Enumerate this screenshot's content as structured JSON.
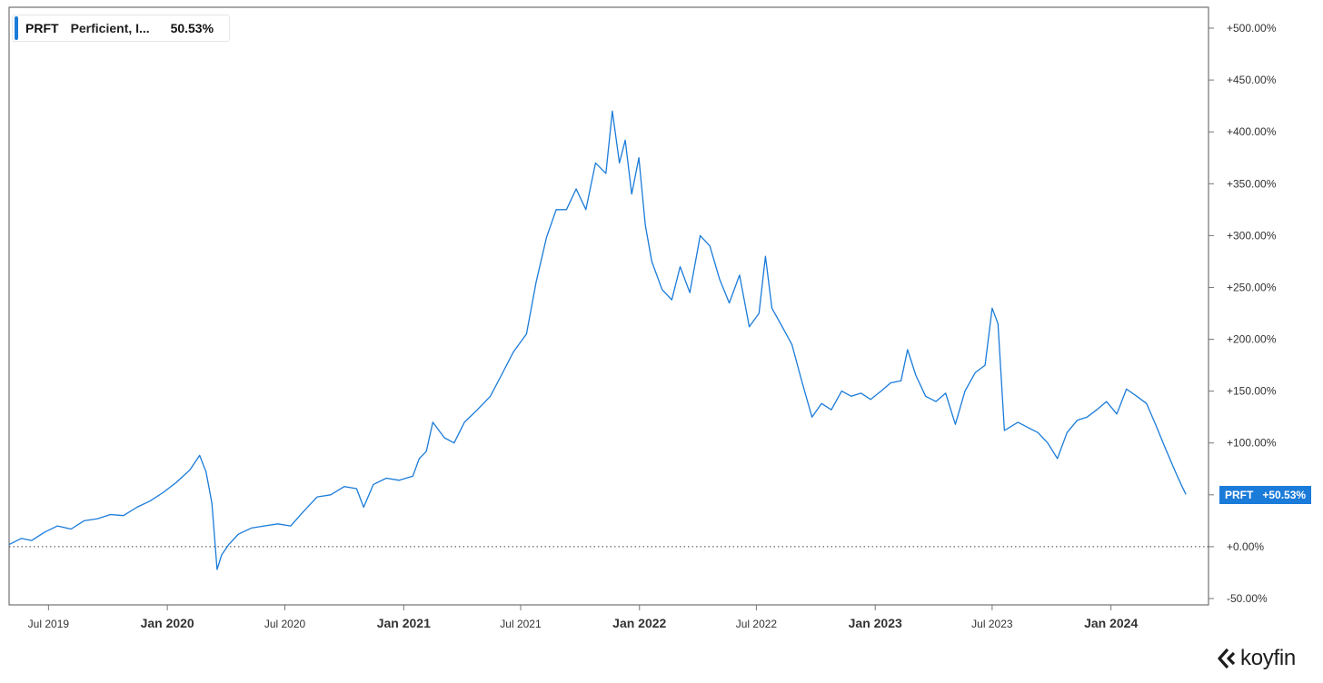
{
  "brand": {
    "name": "koyfin",
    "logo_icon": "koyfin-chevron-logo-icon"
  },
  "legend": {
    "ticker": "PRFT",
    "name": "Perficient, I...",
    "value": "50.53%",
    "color": "#1a7bd9"
  },
  "last_value_tag": {
    "ticker": "PRFT",
    "value": "+50.53%",
    "color": "#1a7bd9"
  },
  "chart_data": {
    "type": "line",
    "title": "",
    "xlabel": "",
    "ylabel": "",
    "ylim": [
      -50,
      500
    ],
    "y_scale": "linear",
    "grid": false,
    "legend_position": "top-left",
    "baseline": 0,
    "y_ticks": [
      {
        "value": 500,
        "label": "+500.00%"
      },
      {
        "value": 450,
        "label": "+450.00%"
      },
      {
        "value": 400,
        "label": "+400.00%"
      },
      {
        "value": 350,
        "label": "+350.00%"
      },
      {
        "value": 300,
        "label": "+300.00%"
      },
      {
        "value": 250,
        "label": "+250.00%"
      },
      {
        "value": 200,
        "label": "+200.00%"
      },
      {
        "value": 150,
        "label": "+150.00%"
      },
      {
        "value": 100,
        "label": "+100.00%"
      },
      {
        "value": 50,
        "label": ""
      },
      {
        "value": 0,
        "label": "+0.00%"
      },
      {
        "value": -50,
        "label": "-50.00%"
      }
    ],
    "x_ticks": [
      {
        "date": "2019-07-01",
        "label": "Jul 2019",
        "major": false
      },
      {
        "date": "2020-01-01",
        "label": "Jan 2020",
        "major": true
      },
      {
        "date": "2020-07-01",
        "label": "Jul 2020",
        "major": false
      },
      {
        "date": "2021-01-01",
        "label": "Jan 2021",
        "major": true
      },
      {
        "date": "2021-07-01",
        "label": "Jul 2021",
        "major": false
      },
      {
        "date": "2022-01-01",
        "label": "Jan 2022",
        "major": true
      },
      {
        "date": "2022-07-01",
        "label": "Jul 2022",
        "major": false
      },
      {
        "date": "2023-01-01",
        "label": "Jan 2023",
        "major": true
      },
      {
        "date": "2023-07-01",
        "label": "Jul 2023",
        "major": false
      },
      {
        "date": "2024-01-01",
        "label": "Jan 2024",
        "major": true
      }
    ],
    "x_range": [
      "2019-05-01",
      "2024-05-31"
    ],
    "series": [
      {
        "name": "PRFT",
        "color": "#1a7bd9",
        "points": [
          [
            "2019-05-01",
            2
          ],
          [
            "2019-05-20",
            8
          ],
          [
            "2019-06-05",
            6
          ],
          [
            "2019-06-25",
            14
          ],
          [
            "2019-07-15",
            20
          ],
          [
            "2019-08-05",
            17
          ],
          [
            "2019-08-25",
            25
          ],
          [
            "2019-09-15",
            27
          ],
          [
            "2019-10-05",
            31
          ],
          [
            "2019-10-25",
            30
          ],
          [
            "2019-11-15",
            38
          ],
          [
            "2019-12-05",
            44
          ],
          [
            "2019-12-25",
            52
          ],
          [
            "2020-01-15",
            62
          ],
          [
            "2020-02-05",
            74
          ],
          [
            "2020-02-20",
            88
          ],
          [
            "2020-03-01",
            72
          ],
          [
            "2020-03-10",
            42
          ],
          [
            "2020-03-18",
            -22
          ],
          [
            "2020-03-25",
            -8
          ],
          [
            "2020-04-05",
            2
          ],
          [
            "2020-04-20",
            12
          ],
          [
            "2020-05-10",
            18
          ],
          [
            "2020-05-30",
            20
          ],
          [
            "2020-06-20",
            22
          ],
          [
            "2020-07-10",
            20
          ],
          [
            "2020-07-30",
            34
          ],
          [
            "2020-08-20",
            48
          ],
          [
            "2020-09-10",
            50
          ],
          [
            "2020-10-01",
            58
          ],
          [
            "2020-10-20",
            56
          ],
          [
            "2020-10-31",
            38
          ],
          [
            "2020-11-15",
            60
          ],
          [
            "2020-12-05",
            66
          ],
          [
            "2020-12-25",
            64
          ],
          [
            "2021-01-15",
            68
          ],
          [
            "2021-01-25",
            85
          ],
          [
            "2021-02-05",
            92
          ],
          [
            "2021-02-15",
            120
          ],
          [
            "2021-03-05",
            105
          ],
          [
            "2021-03-20",
            100
          ],
          [
            "2021-04-05",
            120
          ],
          [
            "2021-04-25",
            132
          ],
          [
            "2021-05-15",
            145
          ],
          [
            "2021-06-01",
            165
          ],
          [
            "2021-06-20",
            188
          ],
          [
            "2021-07-10",
            205
          ],
          [
            "2021-07-25",
            255
          ],
          [
            "2021-08-10",
            298
          ],
          [
            "2021-08-25",
            325
          ],
          [
            "2021-09-10",
            325
          ],
          [
            "2021-09-25",
            345
          ],
          [
            "2021-10-10",
            325
          ],
          [
            "2021-10-25",
            370
          ],
          [
            "2021-11-10",
            360
          ],
          [
            "2021-11-20",
            420
          ],
          [
            "2021-12-01",
            370
          ],
          [
            "2021-12-10",
            392
          ],
          [
            "2021-12-20",
            340
          ],
          [
            "2021-12-31",
            375
          ],
          [
            "2022-01-10",
            310
          ],
          [
            "2022-01-20",
            275
          ],
          [
            "2022-02-05",
            248
          ],
          [
            "2022-02-20",
            238
          ],
          [
            "2022-03-05",
            270
          ],
          [
            "2022-03-20",
            245
          ],
          [
            "2022-04-05",
            300
          ],
          [
            "2022-04-20",
            290
          ],
          [
            "2022-05-05",
            258
          ],
          [
            "2022-05-20",
            235
          ],
          [
            "2022-06-05",
            262
          ],
          [
            "2022-06-20",
            212
          ],
          [
            "2022-07-05",
            225
          ],
          [
            "2022-07-15",
            280
          ],
          [
            "2022-07-25",
            230
          ],
          [
            "2022-08-10",
            212
          ],
          [
            "2022-08-25",
            195
          ],
          [
            "2022-09-10",
            158
          ],
          [
            "2022-09-25",
            125
          ],
          [
            "2022-10-10",
            138
          ],
          [
            "2022-10-25",
            132
          ],
          [
            "2022-11-10",
            150
          ],
          [
            "2022-11-25",
            145
          ],
          [
            "2022-12-10",
            148
          ],
          [
            "2022-12-25",
            142
          ],
          [
            "2023-01-10",
            150
          ],
          [
            "2023-01-25",
            158
          ],
          [
            "2023-02-10",
            160
          ],
          [
            "2023-02-20",
            190
          ],
          [
            "2023-03-05",
            165
          ],
          [
            "2023-03-20",
            145
          ],
          [
            "2023-04-05",
            140
          ],
          [
            "2023-04-20",
            148
          ],
          [
            "2023-05-05",
            118
          ],
          [
            "2023-05-20",
            150
          ],
          [
            "2023-06-05",
            168
          ],
          [
            "2023-06-20",
            175
          ],
          [
            "2023-07-01",
            230
          ],
          [
            "2023-07-10",
            215
          ],
          [
            "2023-07-20",
            112
          ],
          [
            "2023-08-10",
            120
          ],
          [
            "2023-08-25",
            115
          ],
          [
            "2023-09-10",
            110
          ],
          [
            "2023-09-25",
            100
          ],
          [
            "2023-10-10",
            85
          ],
          [
            "2023-10-25",
            110
          ],
          [
            "2023-11-10",
            122
          ],
          [
            "2023-11-25",
            125
          ],
          [
            "2023-12-10",
            132
          ],
          [
            "2023-12-25",
            140
          ],
          [
            "2024-01-10",
            128
          ],
          [
            "2024-01-25",
            152
          ],
          [
            "2024-02-10",
            145
          ],
          [
            "2024-02-25",
            138
          ],
          [
            "2024-03-10",
            118
          ],
          [
            "2024-03-25",
            95
          ],
          [
            "2024-04-10",
            72
          ],
          [
            "2024-04-20",
            58
          ],
          [
            "2024-04-26",
            50.53
          ]
        ]
      }
    ]
  }
}
